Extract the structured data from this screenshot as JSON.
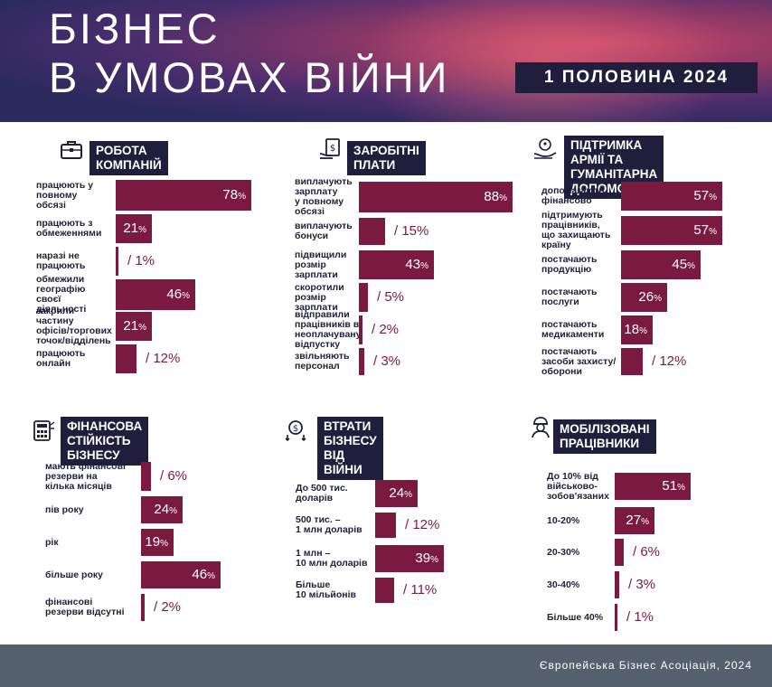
{
  "header": {
    "title_line1": "БІЗНЕС",
    "title_line2": "В УМОВАХ ВІЙНИ",
    "period": "1 ПОЛОВИНА 2024"
  },
  "footer": {
    "text": "Європейська Бізнес Асоціація, 2024"
  },
  "colors": {
    "bar": "#7a1a3e",
    "navy": "#1f1f3d"
  },
  "chart_data": [
    {
      "type": "bar",
      "title": "РОБОТА КОМПАНІЙ",
      "icon": "briefcase-icon",
      "categories": [
        "працюють у\nповному\nобсязі",
        "працюють з\nобмеженнями",
        "наразі не\nпрацюють",
        "обмежили\nгеографію\nсвоєї діяльності",
        "закрили частину\nофісів/торгових\nточок/відділень",
        "працюють\nонлайн"
      ],
      "values": [
        78,
        21,
        1,
        46,
        21,
        12
      ]
    },
    {
      "type": "bar",
      "title": "ЗАРОБІТНІ ПЛАТИ",
      "icon": "salary-icon",
      "categories": [
        "виплачують\nзарплату\nу повному\nобсязі",
        "виплачують\nбонуси",
        "підвищили\nрозмір\nзарплати",
        "скоротили\nрозмір\nзарплати",
        "відправили\nпрацівників в\nнеоплачувану\nвідпустку",
        "звільняють\nперсонал"
      ],
      "values": [
        88,
        15,
        43,
        5,
        2,
        3
      ]
    },
    {
      "type": "bar",
      "title": "ПІДТРИМКА АРМІЇ ТА\nГУМАНІТАРНА ДОПОМОГА",
      "icon": "support-hands-icon",
      "categories": [
        "допомагають\nфінансово",
        "підтримують\nпрацівників,\nщо захищають\nкраїну",
        "постачають\nпродукцію",
        "постачають\nпослуги",
        "постачають\nмедикаменти",
        "постачають\nзасоби захисту/\nоборони"
      ],
      "values": [
        57,
        57,
        45,
        26,
        18,
        12
      ]
    },
    {
      "type": "bar",
      "title": "ФІНАНСОВА СТІЙКІСТЬ\nБІЗНЕСУ",
      "icon": "calculator-icon",
      "categories": [
        "мають фінансові\nрезерви на\nкілька місяців",
        "пів року",
        "рік",
        "більше року",
        "фінансові\nрезерви відсутні"
      ],
      "values": [
        6,
        24,
        19,
        46,
        2
      ]
    },
    {
      "type": "bar",
      "title": "ВТРАТИ БІЗНЕСУ ВІД\nВІЙНИ",
      "icon": "money-loss-icon",
      "categories": [
        "До 500 тис.\nдоларів",
        "500 тис. –\n1 млн доларів",
        "1 млн –\n10 млн доларів",
        "Більше\n10 мільйонів"
      ],
      "values": [
        24,
        12,
        39,
        11
      ]
    },
    {
      "type": "bar",
      "title": "МОБІЛІЗОВАНІ ПРАЦІВНИКИ",
      "icon": "soldier-icon",
      "categories": [
        "До 10% від\nвійськово-\nзобов'язаних",
        "10-20%",
        "20-30%",
        "30-40%",
        "Більше 40%"
      ],
      "values": [
        51,
        27,
        6,
        3,
        1
      ]
    }
  ]
}
